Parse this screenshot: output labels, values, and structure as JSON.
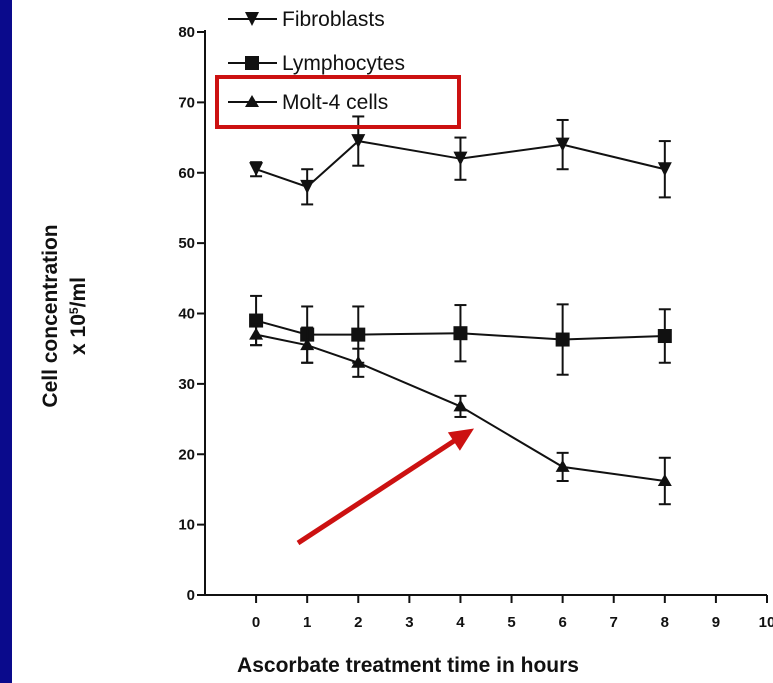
{
  "chart_data": {
    "type": "line",
    "xlabel": "Ascorbate treatment time in hours",
    "ylabel_line1": "Cell concentration",
    "ylabel_line2_prefix": "x 10",
    "ylabel_line2_sup": "5",
    "ylabel_line2_suffix": "/ml",
    "xlim": [
      -1,
      10
    ],
    "ylim": [
      0,
      80
    ],
    "x_ticks": [
      0,
      1,
      2,
      3,
      4,
      5,
      6,
      7,
      8,
      9,
      10
    ],
    "y_ticks": [
      0,
      10,
      20,
      30,
      40,
      50,
      60,
      70,
      80
    ],
    "x_tick_labels": [
      "0",
      "1",
      "2",
      "3",
      "4",
      "5",
      "6",
      "7",
      "8",
      "9",
      "10"
    ],
    "y_tick_labels": [
      "0",
      "10",
      "20",
      "30",
      "40",
      "50",
      "60",
      "70",
      "80"
    ],
    "legend_placement": "top-left",
    "series": [
      {
        "name": "Fibroblasts",
        "marker": "triangle-down",
        "x": [
          0,
          1,
          2,
          4,
          6,
          8
        ],
        "values": [
          60.5,
          58,
          64.5,
          62,
          64,
          60.5
        ],
        "err": [
          1,
          2.5,
          3.5,
          3,
          3.5,
          4
        ]
      },
      {
        "name": "Lymphocytes",
        "marker": "square",
        "x": [
          0,
          1,
          2,
          4,
          6,
          8
        ],
        "values": [
          39,
          37,
          37,
          37.2,
          36.3,
          36.8
        ],
        "err": [
          3.5,
          4,
          4,
          4,
          5,
          3.8
        ]
      },
      {
        "name": "Molt-4 cells",
        "marker": "triangle-up",
        "x": [
          0,
          1,
          2,
          4,
          6,
          8
        ],
        "values": [
          37,
          35.5,
          33,
          26.8,
          18.2,
          16.2
        ],
        "err": [
          1.5,
          2.5,
          2,
          1.5,
          2,
          3.3
        ]
      }
    ],
    "annotations": [
      {
        "type": "highlight-box",
        "target": "legend:Molt-4 cells",
        "color": "#cc1111"
      },
      {
        "type": "arrow",
        "points_to": "Molt-4 cells at x=4.5",
        "color": "#cc1111"
      }
    ]
  }
}
